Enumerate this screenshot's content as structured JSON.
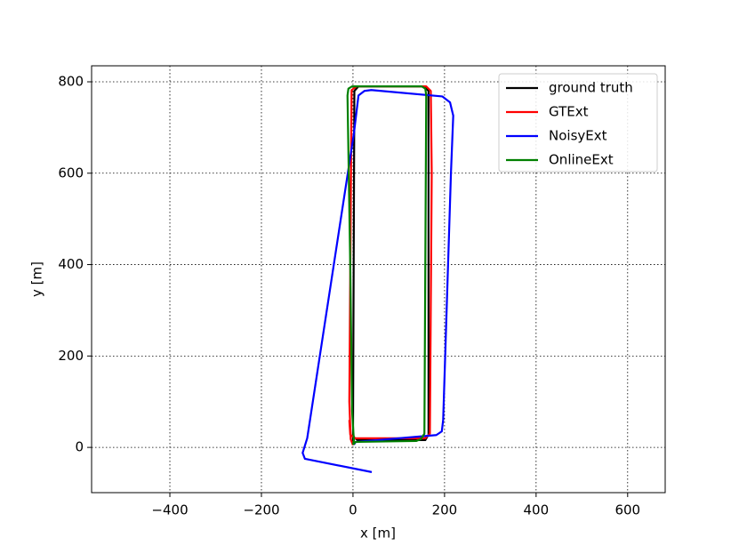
{
  "chart_data": {
    "type": "line",
    "xlabel": "x [m]",
    "ylabel": "y [m]",
    "xlim": [
      -571,
      682
    ],
    "ylim": [
      -99,
      835
    ],
    "xticks": [
      {
        "value": -400,
        "label": "−400"
      },
      {
        "value": -200,
        "label": "−200"
      },
      0,
      200,
      400,
      600
    ],
    "yticks": [
      0,
      200,
      400,
      600,
      800
    ],
    "grid": true,
    "legend": "upper right",
    "series": [
      {
        "name": "ground truth",
        "color": "#000000",
        "x": [
          0,
          0,
          3,
          12,
          155,
          165,
          165,
          158,
          10,
          2,
          0
        ],
        "values": [
          5,
          20,
          780,
          790,
          790,
          780,
          28,
          16,
          16,
          22,
          30
        ]
      },
      {
        "name": "GTExt",
        "color": "#ff0000",
        "x": [
          0,
          -5,
          -8,
          -3,
          8,
          160,
          170,
          172,
          168,
          158,
          5,
          -6,
          -8
        ],
        "values": [
          5,
          18,
          100,
          782,
          790,
          790,
          780,
          600,
          30,
          20,
          20,
          28,
          60
        ]
      },
      {
        "name": "NoisyExt",
        "color": "#0000ff",
        "x": [
          41,
          -105,
          -110,
          -100,
          2,
          12,
          25,
          40,
          195,
          212,
          219,
          214,
          197,
          194,
          182,
          160,
          6,
          2
        ],
        "values": [
          -54,
          -25,
          -12,
          20,
          687,
          770,
          780,
          782,
          768,
          755,
          726,
          600,
          60,
          35,
          27,
          25,
          12,
          6
        ]
      },
      {
        "name": "OnlineExt",
        "color": "#008000",
        "x": [
          0,
          2,
          -2,
          -6,
          -12,
          -10,
          -2,
          150,
          158,
          160,
          158,
          156,
          148,
          138,
          6,
          0
        ],
        "values": [
          6,
          15,
          80,
          400,
          770,
          785,
          790,
          790,
          785,
          770,
          400,
          30,
          18,
          14,
          12,
          6
        ]
      }
    ]
  }
}
